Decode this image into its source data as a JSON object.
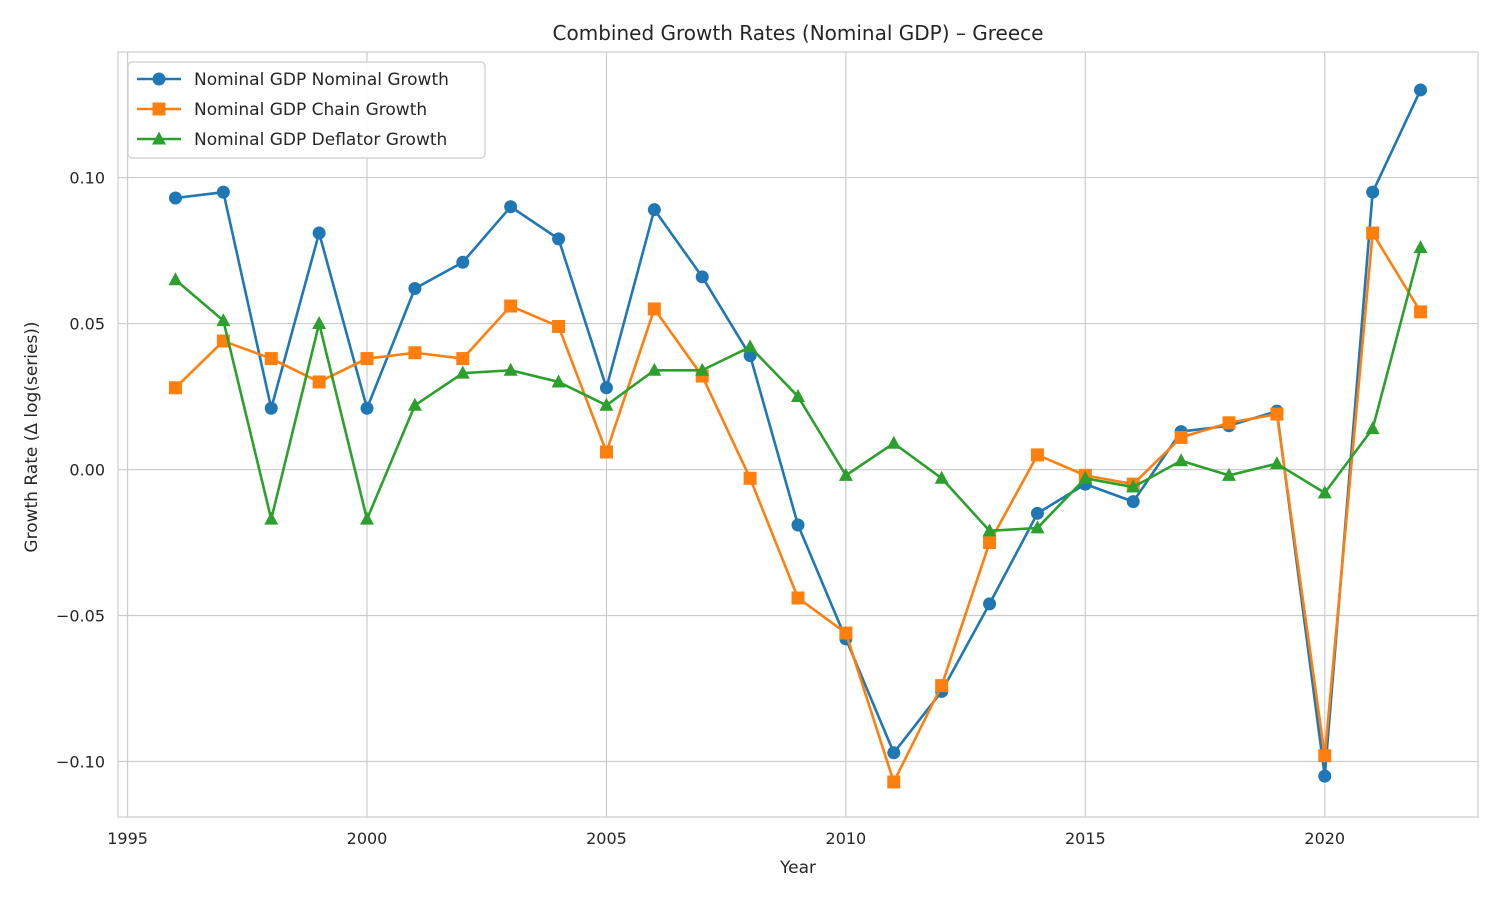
{
  "chart_data": {
    "type": "line",
    "title": "Combined Growth Rates (Nominal GDP) – Greece",
    "xlabel": "Year",
    "ylabel": "Growth Rate (Δ log(series))",
    "xlim": [
      1994.8,
      2023.2
    ],
    "ylim": [
      -0.119,
      0.143
    ],
    "xticks": [
      1995,
      2000,
      2005,
      2010,
      2015,
      2020
    ],
    "xtick_labels": [
      "1995",
      "2000",
      "2005",
      "2010",
      "2015",
      "2020"
    ],
    "yticks": [
      -0.1,
      -0.05,
      0.0,
      0.05,
      0.1
    ],
    "ytick_labels": [
      "−0.10",
      "−0.05",
      "0.00",
      "0.05",
      "0.10"
    ],
    "grid": true,
    "legend_position": "upper-left",
    "x": [
      1996,
      1997,
      1998,
      1999,
      2000,
      2001,
      2002,
      2003,
      2004,
      2005,
      2006,
      2007,
      2008,
      2009,
      2010,
      2011,
      2012,
      2013,
      2014,
      2015,
      2016,
      2017,
      2018,
      2019,
      2020,
      2021,
      2022
    ],
    "series": [
      {
        "name": "Nominal GDP Nominal Growth",
        "color": "#1f77b4",
        "marker": "circle",
        "values": [
          0.093,
          0.095,
          0.021,
          0.081,
          0.021,
          0.062,
          0.071,
          0.09,
          0.079,
          0.028,
          0.089,
          0.066,
          0.039,
          -0.019,
          -0.058,
          -0.097,
          -0.076,
          -0.046,
          -0.015,
          -0.005,
          -0.011,
          0.013,
          0.015,
          0.02,
          -0.105,
          0.095,
          0.13
        ]
      },
      {
        "name": "Nominal GDP Chain Growth",
        "color": "#ff7f0e",
        "marker": "square",
        "values": [
          0.028,
          0.044,
          0.038,
          0.03,
          0.038,
          0.04,
          0.038,
          0.056,
          0.049,
          0.006,
          0.055,
          0.032,
          -0.003,
          -0.044,
          -0.056,
          -0.107,
          -0.074,
          -0.025,
          0.005,
          -0.002,
          -0.005,
          0.011,
          0.016,
          0.019,
          -0.098,
          0.081,
          0.054
        ]
      },
      {
        "name": "Nominal GDP Deflator Growth",
        "color": "#2ca02c",
        "marker": "triangle",
        "values": [
          0.065,
          0.051,
          -0.017,
          0.05,
          -0.017,
          0.022,
          0.033,
          0.034,
          0.03,
          0.022,
          0.034,
          0.034,
          0.042,
          0.025,
          -0.002,
          0.009,
          -0.003,
          -0.021,
          -0.02,
          -0.003,
          -0.006,
          0.003,
          -0.002,
          0.002,
          -0.008,
          0.014,
          0.076
        ]
      }
    ]
  }
}
